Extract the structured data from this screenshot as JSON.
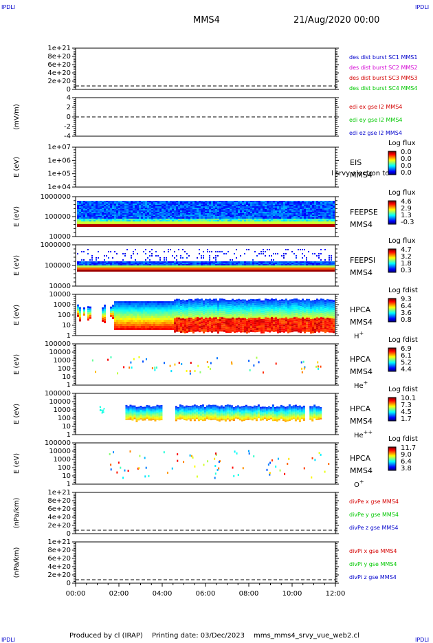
{
  "header": {
    "left_tag": "IPDLI",
    "right_tag": "IPDLI",
    "spacecraft": "MMS4",
    "date": "21/Aug/2020 00:00"
  },
  "footer": {
    "producer": "Produced by cl (IRAP)",
    "printing": "Printing date: 03/Dec/2023",
    "file": "mms_mms4_srvy_vue_web2.cl",
    "left_tag": "IPDLI",
    "right_tag": "IPDLI"
  },
  "colors": {
    "red": "#d40000",
    "magenta": "#d400d4",
    "green": "#00c800",
    "blue": "#0000cc",
    "black": "#000000"
  },
  "panels": [
    {
      "id": "des",
      "ylabel": "",
      "ticks": [
        "1e+21",
        "8e+20",
        "6e+20",
        "4e+20",
        "2e+20",
        "0"
      ],
      "zero_line": true,
      "legend": [
        {
          "text": "des dist burst SC1 MMS1",
          "color": "#0000cc"
        },
        {
          "text": "des dist burst SC2 MMS2",
          "color": "#d400d4"
        },
        {
          "text": "des dist burst SC3 MMS3",
          "color": "#d40000"
        },
        {
          "text": "des dist burst SC4 MMS4",
          "color": "#00c800"
        }
      ]
    },
    {
      "id": "edi",
      "ylabel": "(mV/m)",
      "ticks": [
        "4",
        "2",
        "0",
        "-2",
        "-4"
      ],
      "zero_line": true,
      "legend": [
        {
          "text": "edi ex gse l2 MMS4",
          "color": "#d40000"
        },
        {
          "text": "edi ey gse l2 MMS4",
          "color": "#00c800"
        },
        {
          "text": "edi ez gse l2 MMS4",
          "color": "#0000cc"
        }
      ]
    },
    {
      "id": "eis",
      "ylabel": "E (eV)",
      "ticks": [
        "1e+07",
        "1e+06",
        "1e+05",
        "1e+04"
      ],
      "side": [
        "EIS",
        "MMS4"
      ],
      "overlay": "l srvy electron to",
      "cbar_title": "Log flux",
      "cbar_ticks": [
        "0.0",
        "0.0",
        "0.0",
        "0.0"
      ]
    },
    {
      "id": "feepse",
      "ylabel": "E (eV)",
      "ticks": [
        "1000000",
        "100000",
        "10000"
      ],
      "side": [
        "FEEPSE",
        "MMS4"
      ],
      "cbar_title": "Log flux",
      "cbar_ticks": [
        "4.6",
        "2.9",
        "1.3",
        "-0.3"
      ]
    },
    {
      "id": "feepsi",
      "ylabel": "E (eV)",
      "ticks": [
        "1000000",
        "100000",
        "10000"
      ],
      "side": [
        "FEEPSI",
        "MMS4"
      ],
      "cbar_title": "Log flux",
      "cbar_ticks": [
        "4.7",
        "3.2",
        "1.8",
        "0.3"
      ]
    },
    {
      "id": "hpca_h",
      "ylabel": "E (eV)",
      "ticks": [
        "10000",
        "1000",
        "100",
        "10",
        "1"
      ],
      "side": [
        "HPCA",
        "MMS4",
        "H+"
      ],
      "cbar_title": "Log fdist",
      "cbar_ticks": [
        "9.3",
        "6.4",
        "3.6",
        "0.8"
      ]
    },
    {
      "id": "hpca_he",
      "ylabel": "E (eV)",
      "ticks": [
        "100000",
        "10000",
        "1000",
        "100",
        "10",
        "1"
      ],
      "side": [
        "HPCA",
        "MMS4",
        "He+"
      ],
      "cbar_title": "Log fdist",
      "cbar_ticks": [
        "6.9",
        "6.1",
        "5.2",
        "4.4"
      ]
    },
    {
      "id": "hpca_hepp",
      "ylabel": "E (eV)",
      "ticks": [
        "100000",
        "10000",
        "1000",
        "100",
        "10",
        "1"
      ],
      "side": [
        "HPCA",
        "MMS4",
        "He++"
      ],
      "cbar_title": "Log fdist",
      "cbar_ticks": [
        "10.1",
        "7.3",
        "4.5",
        "1.7"
      ]
    },
    {
      "id": "hpca_o",
      "ylabel": "E (eV)",
      "ticks": [
        "100000",
        "10000",
        "1000",
        "100",
        "10",
        "1"
      ],
      "side": [
        "HPCA",
        "MMS4",
        "O+"
      ],
      "cbar_title": "Log fdist",
      "cbar_ticks": [
        "11.7",
        "9.0",
        "6.4",
        "3.8"
      ]
    },
    {
      "id": "divpe",
      "ylabel": "(nPa/km)",
      "ticks": [
        "1e+21",
        "8e+20",
        "6e+20",
        "4e+20",
        "2e+20",
        "0"
      ],
      "zero_line": true,
      "legend": [
        {
          "text": "divPe x gse MMS4",
          "color": "#d40000"
        },
        {
          "text": "divPe y gse MMS4",
          "color": "#00c800"
        },
        {
          "text": "divPe z gse MMS4",
          "color": "#0000cc"
        }
      ]
    },
    {
      "id": "divpi",
      "ylabel": "(nPa/km)",
      "ticks": [
        "1e+21",
        "8e+20",
        "6e+20",
        "4e+20",
        "2e+20",
        "0"
      ],
      "zero_line": true,
      "legend": [
        {
          "text": "divPi x gse MMS4",
          "color": "#d40000"
        },
        {
          "text": "divPi y gse MMS4",
          "color": "#00c800"
        },
        {
          "text": "divPi z gse MMS4",
          "color": "#0000cc"
        }
      ]
    }
  ],
  "time_axis": {
    "ticks": [
      "00:00",
      "02:00",
      "04:00",
      "06:00",
      "08:00",
      "10:00",
      "12:00"
    ]
  },
  "chart_data": {
    "type": "heatmap",
    "title": "MMS4",
    "x_range": [
      "00:00",
      "12:00"
    ],
    "xticks": [
      "00:00",
      "02:00",
      "04:00",
      "06:00",
      "08:00",
      "10:00",
      "12:00"
    ],
    "series": [
      {
        "name": "FEEPSE",
        "ylim": [
          10000,
          1000000
        ],
        "cbar": [
          -0.3,
          4.6
        ]
      },
      {
        "name": "FEEPSI",
        "ylim": [
          10000,
          1000000
        ],
        "cbar": [
          0.3,
          4.7
        ]
      },
      {
        "name": "H+",
        "ylim": [
          1,
          10000
        ],
        "cbar": [
          0.8,
          9.3
        ]
      },
      {
        "name": "He+",
        "ylim": [
          1,
          100000
        ],
        "cbar": [
          4.4,
          6.9
        ]
      },
      {
        "name": "He++",
        "ylim": [
          1,
          100000
        ],
        "cbar": [
          1.7,
          10.1
        ]
      },
      {
        "name": "O+",
        "ylim": [
          1,
          100000
        ],
        "cbar": [
          3.8,
          11.7
        ]
      }
    ]
  }
}
